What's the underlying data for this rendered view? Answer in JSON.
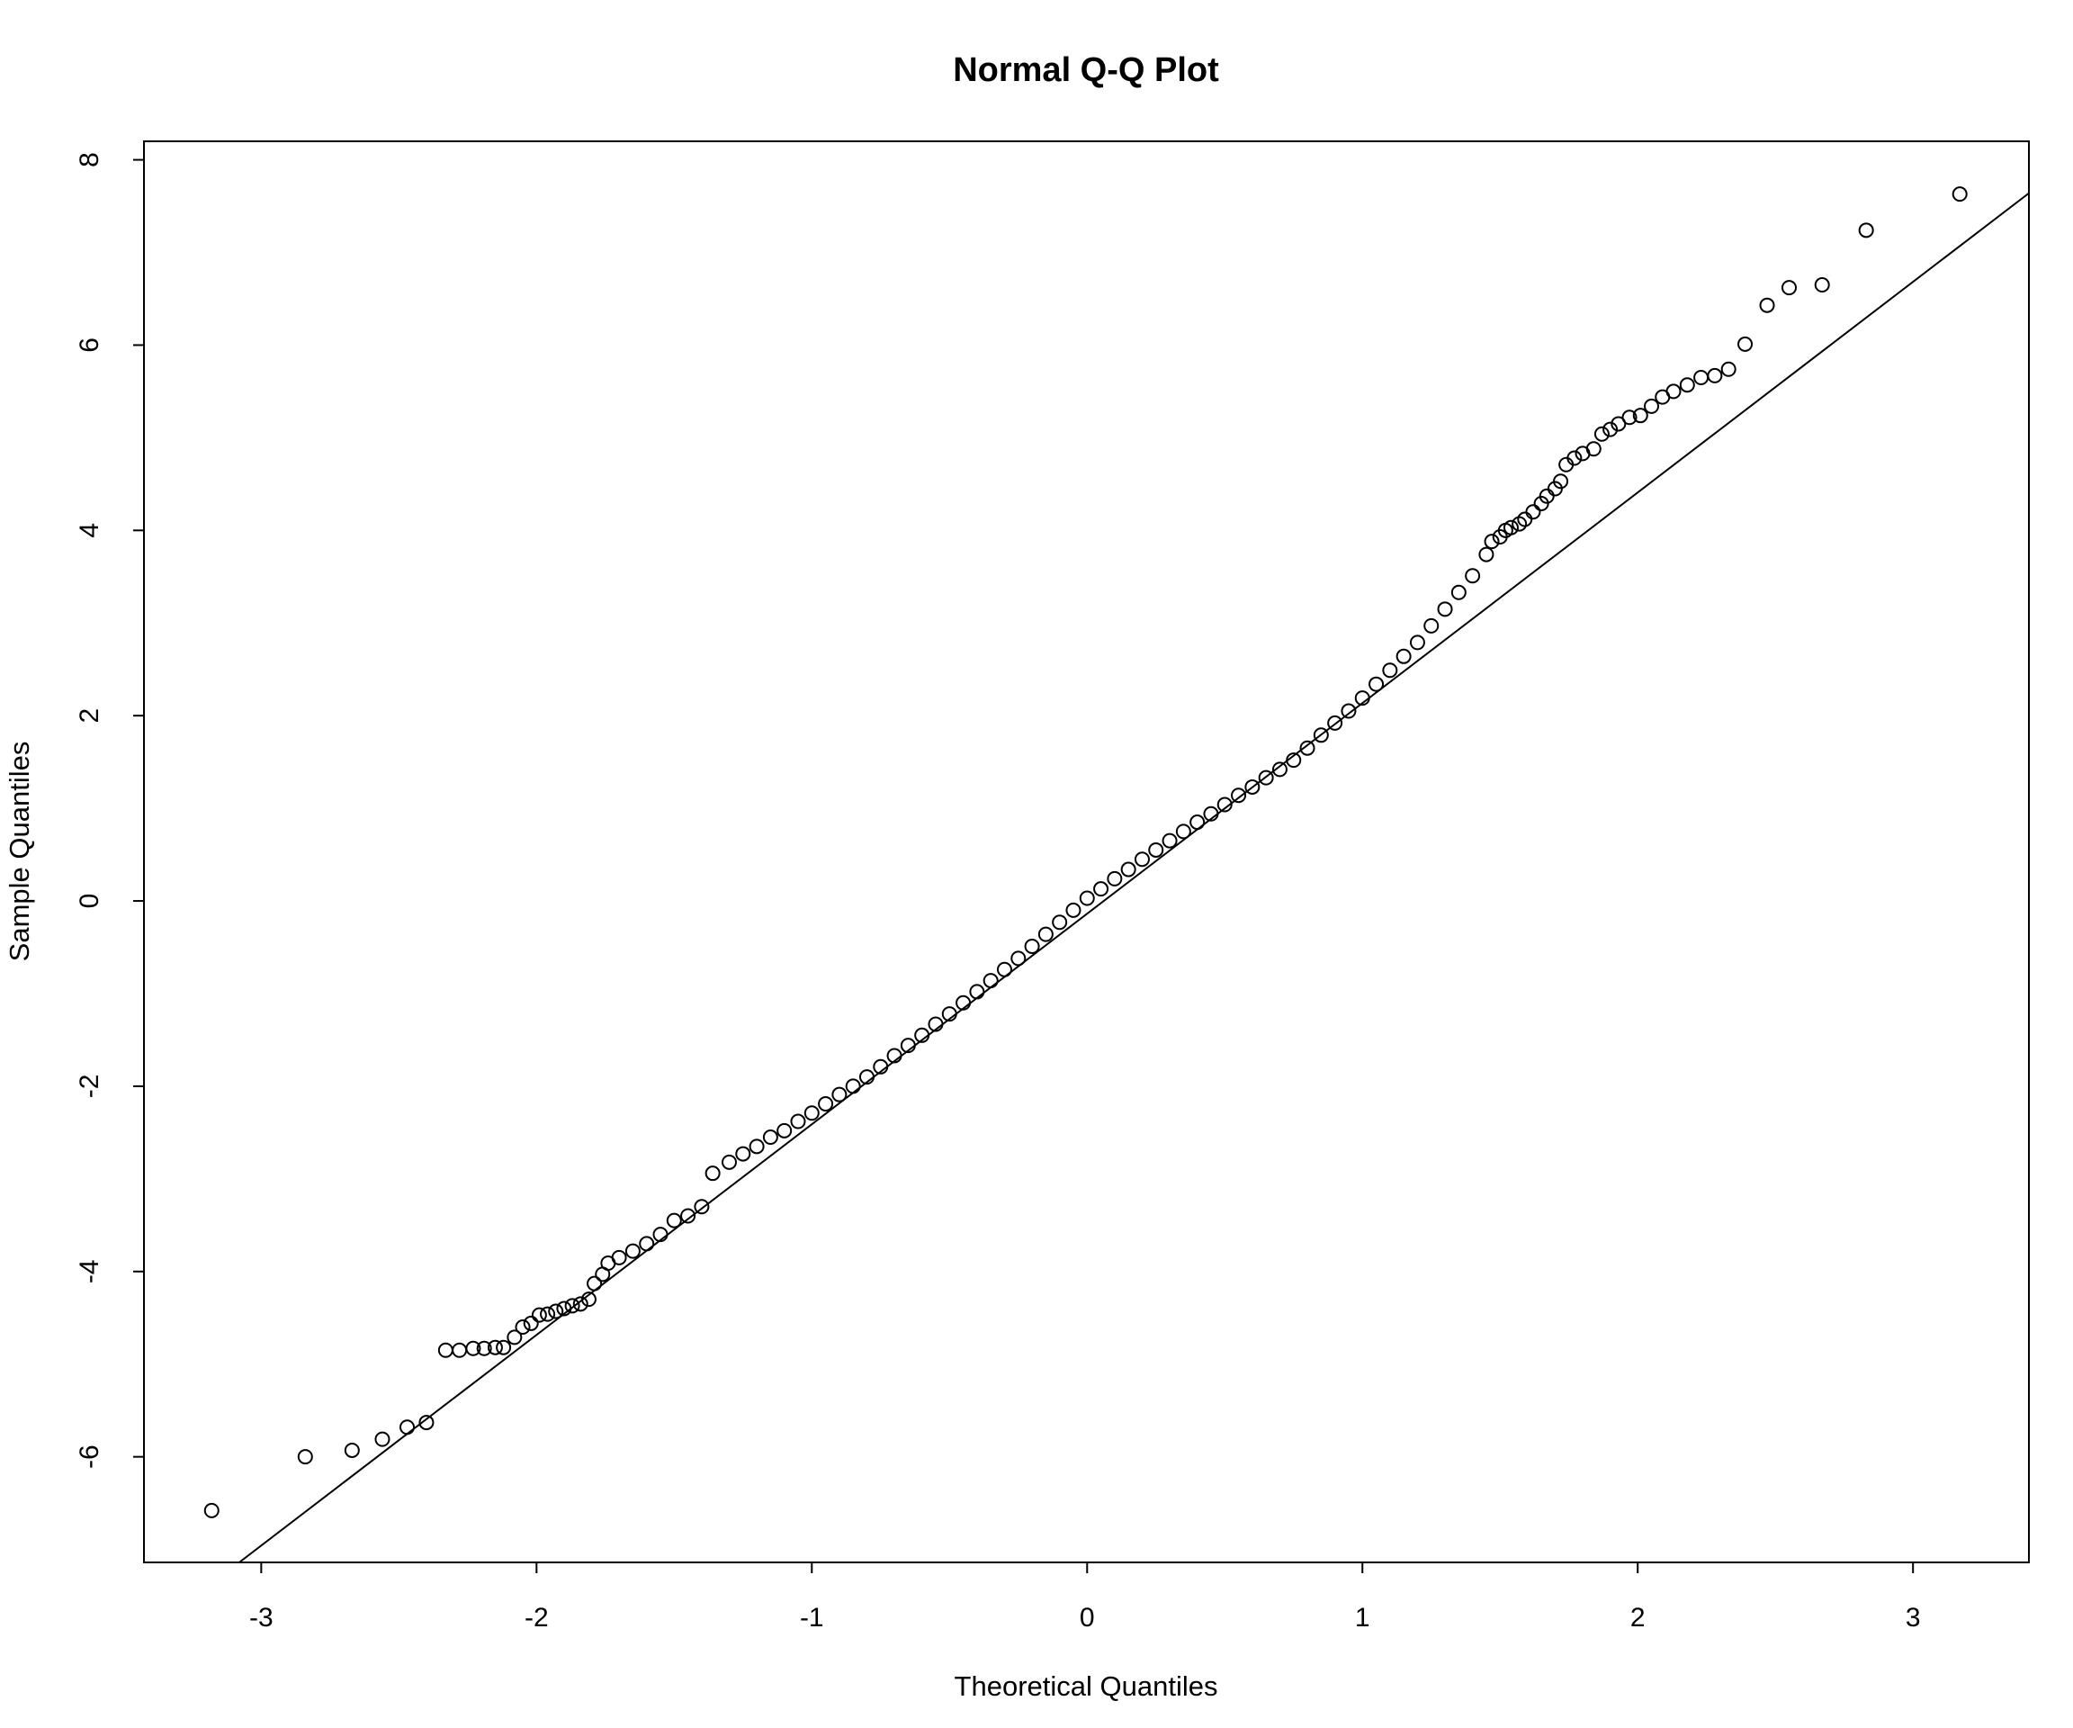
{
  "chart_data": {
    "type": "scatter",
    "title": "Normal Q-Q Plot",
    "x_label": "Theoretical Quantiles",
    "y_label": "Sample Quantiles",
    "xlim": [
      -3.426,
      3.421
    ],
    "ylim": [
      -7.14,
      8.2
    ],
    "xticks": [
      -3,
      -2,
      -1,
      0,
      1,
      2,
      3
    ],
    "yticks": [
      -6,
      -4,
      -2,
      0,
      2,
      4,
      6,
      8
    ],
    "color": "#000000",
    "reference_line": {
      "x": [
        -3.08,
        3.421
      ],
      "y": [
        -7.14,
        7.64
      ]
    },
    "x": [
      -3.18,
      -2.84,
      -2.67,
      -2.56,
      -2.47,
      -2.4,
      -2.33,
      -2.28,
      -2.23,
      -2.19,
      -2.15,
      -2.12,
      -2.08,
      -2.05,
      -2.02,
      -1.99,
      -1.96,
      -1.93,
      -1.9,
      -1.87,
      -1.84,
      -1.81,
      -1.79,
      -1.76,
      -1.74,
      -1.7,
      -1.65,
      -1.6,
      -1.55,
      -1.5,
      -1.45,
      -1.4,
      -1.36,
      -1.3,
      -1.25,
      -1.2,
      -1.15,
      -1.1,
      -1.05,
      -1.0,
      -0.95,
      -0.9,
      -0.85,
      -0.8,
      -0.75,
      -0.7,
      -0.65,
      -0.6,
      -0.55,
      -0.5,
      -0.45,
      -0.4,
      -0.35,
      -0.3,
      -0.25,
      -0.2,
      -0.15,
      -0.1,
      -0.05,
      0.0,
      0.05,
      0.1,
      0.15,
      0.2,
      0.25,
      0.3,
      0.35,
      0.4,
      0.45,
      0.5,
      0.55,
      0.6,
      0.65,
      0.7,
      0.75,
      0.8,
      0.85,
      0.9,
      0.95,
      1.0,
      1.05,
      1.1,
      1.15,
      1.2,
      1.25,
      1.3,
      1.35,
      1.4,
      1.45,
      1.47,
      1.5,
      1.52,
      1.54,
      1.57,
      1.59,
      1.62,
      1.65,
      1.67,
      1.7,
      1.72,
      1.74,
      1.77,
      1.8,
      1.84,
      1.87,
      1.9,
      1.93,
      1.97,
      2.01,
      2.05,
      2.09,
      2.13,
      2.18,
      2.23,
      2.28,
      2.33,
      2.39,
      2.47,
      2.55,
      2.67,
      2.83,
      3.17
    ],
    "y": [
      -6.58,
      -6.0,
      -5.93,
      -5.81,
      -5.68,
      -5.63,
      -4.85,
      -4.85,
      -4.83,
      -4.83,
      -4.82,
      -4.82,
      -4.71,
      -4.6,
      -4.56,
      -4.47,
      -4.46,
      -4.43,
      -4.4,
      -4.37,
      -4.35,
      -4.3,
      -4.13,
      -4.03,
      -3.91,
      -3.85,
      -3.78,
      -3.7,
      -3.6,
      -3.45,
      -3.4,
      -3.3,
      -2.94,
      -2.82,
      -2.73,
      -2.65,
      -2.55,
      -2.48,
      -2.38,
      -2.29,
      -2.19,
      -2.09,
      -2.0,
      -1.9,
      -1.79,
      -1.67,
      -1.56,
      -1.45,
      -1.33,
      -1.22,
      -1.1,
      -0.98,
      -0.86,
      -0.74,
      -0.62,
      -0.49,
      -0.36,
      -0.23,
      -0.1,
      0.03,
      0.13,
      0.24,
      0.34,
      0.45,
      0.55,
      0.65,
      0.75,
      0.85,
      0.94,
      1.04,
      1.14,
      1.23,
      1.33,
      1.42,
      1.52,
      1.65,
      1.79,
      1.92,
      2.05,
      2.19,
      2.34,
      2.49,
      2.64,
      2.79,
      2.97,
      3.15,
      3.33,
      3.51,
      3.74,
      3.88,
      3.93,
      4.0,
      4.03,
      4.07,
      4.12,
      4.2,
      4.29,
      4.37,
      4.45,
      4.53,
      4.71,
      4.78,
      4.83,
      4.88,
      5.04,
      5.09,
      5.15,
      5.22,
      5.24,
      5.34,
      5.44,
      5.5,
      5.57,
      5.65,
      5.67,
      5.74,
      6.01,
      6.43,
      6.62,
      6.65,
      7.24,
      7.63
    ]
  }
}
